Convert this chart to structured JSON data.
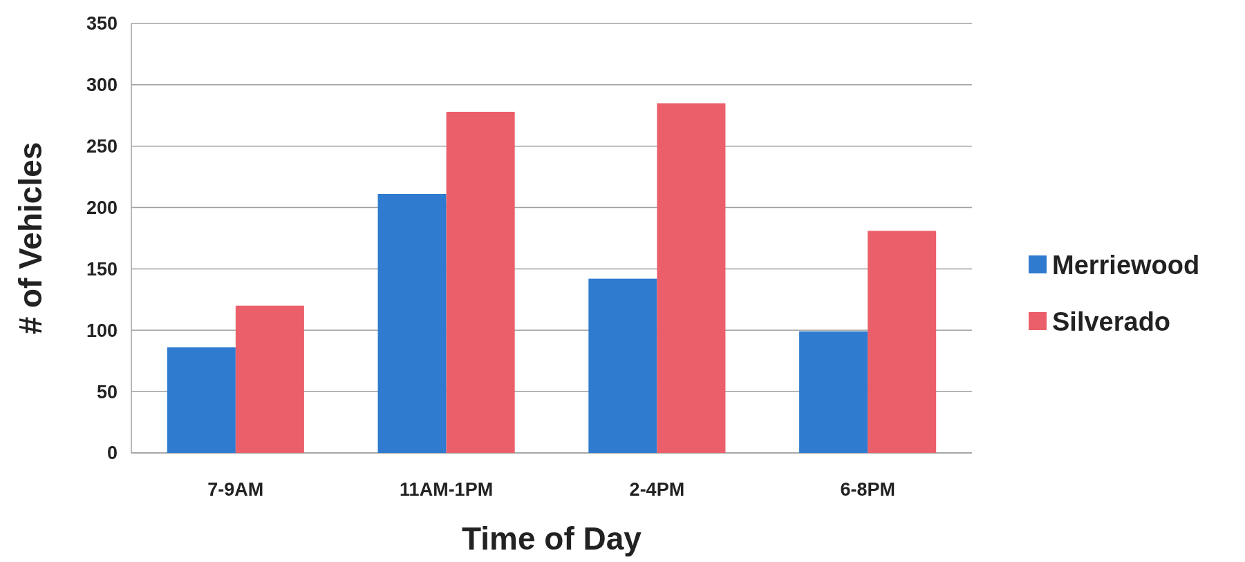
{
  "chart_data": {
    "type": "bar",
    "xlabel": "Time of Day",
    "ylabel": "# of Vehicles",
    "categories": [
      "7-9AM",
      "11AM-1PM",
      "2-4PM",
      "6-8PM"
    ],
    "series": [
      {
        "name": "Merriewood",
        "color": "#2e7bcf",
        "values": [
          86,
          211,
          142,
          99
        ]
      },
      {
        "name": "Silverado",
        "color": "#eb5f6a",
        "values": [
          120,
          278,
          285,
          181
        ]
      }
    ],
    "ylim": [
      0,
      350
    ],
    "yticks": [
      0,
      50,
      100,
      150,
      200,
      250,
      300,
      350
    ],
    "grid": "y",
    "legend": "right"
  }
}
